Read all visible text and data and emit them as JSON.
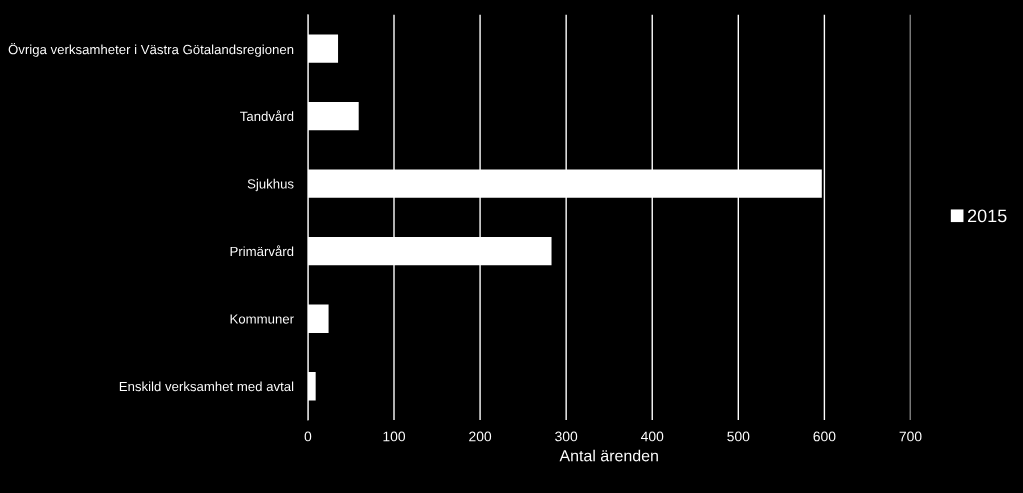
{
  "chart_data": {
    "type": "bar",
    "orientation": "horizontal",
    "xlabel": "Antal ärenden",
    "categories": [
      "Övriga verksamheter i Västra Götalandsregionen",
      "Tandvård",
      "Sjukhus",
      "Primärvård",
      "Kommuner",
      "Enskild verksamhet med avtal"
    ],
    "series": [
      {
        "name": "2015",
        "color": "#ffffff",
        "values": [
          35,
          59,
          597,
          283,
          24,
          9
        ]
      }
    ],
    "xlim": [
      0,
      700
    ],
    "xticks": [
      0,
      100,
      200,
      300,
      400,
      500,
      600,
      700
    ],
    "grid": "x",
    "legend": "right"
  }
}
